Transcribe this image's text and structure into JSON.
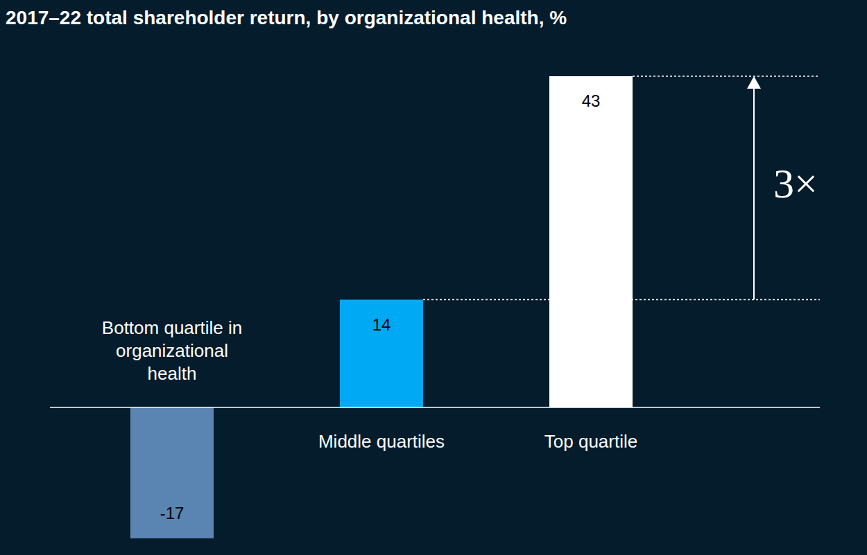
{
  "chart_data": {
    "type": "bar",
    "title": "2017–22 total shareholder return, by organizational health, %",
    "categories": [
      "Bottom quartile in organizational health",
      "Middle quartiles",
      "Top quartile"
    ],
    "values": [
      -17,
      14,
      43
    ],
    "colors": [
      "#5a84b2",
      "#00a9f4",
      "#ffffff"
    ],
    "ylim": [
      -17,
      43
    ],
    "grid": false,
    "data_labels": true,
    "tick_labels": "x",
    "annotation": {
      "text": "3×",
      "between": [
        "Middle quartiles",
        "Top quartile"
      ]
    }
  }
}
